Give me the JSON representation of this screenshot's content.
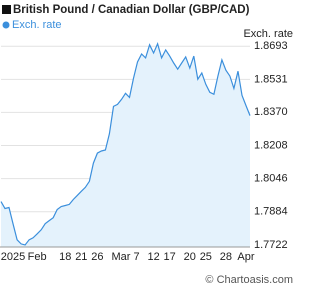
{
  "chart_data": {
    "type": "area",
    "title": "British Pound / Canadian Dollar (GBP/CAD)",
    "y_axis_label": "Exch. rate",
    "credit": "© Chartoasis.com",
    "categories": [
      null,
      null,
      null,
      "2025",
      null,
      null,
      null,
      null,
      null,
      "Feb",
      null,
      null,
      null,
      null,
      null,
      null,
      "18",
      null,
      null,
      null,
      "21",
      null,
      null,
      null,
      "26",
      null,
      null,
      null,
      null,
      null,
      null,
      "Mar 7",
      null,
      null,
      null,
      null,
      null,
      null,
      "12",
      null,
      null,
      null,
      "17",
      null,
      null,
      null,
      null,
      "20",
      null,
      null,
      null,
      "25",
      null,
      null,
      null,
      null,
      "28",
      null,
      null,
      null,
      null,
      "Apr",
      null
    ],
    "series": [
      {
        "name": "Exch. rate",
        "color": "#3b8fdc",
        "fill": "#e4f2fc",
        "values": [
          1.7934,
          1.79,
          1.7905,
          1.7826,
          1.7747,
          1.7727,
          1.7722,
          1.7747,
          1.7757,
          1.7776,
          1.7796,
          1.7826,
          1.7841,
          1.7855,
          1.7895,
          1.791,
          1.7915,
          1.792,
          1.7944,
          1.7964,
          1.7984,
          1.8003,
          1.8033,
          1.8122,
          1.8171,
          1.8181,
          1.8186,
          1.8265,
          1.8399,
          1.8409,
          1.8433,
          1.8463,
          1.8443,
          1.8537,
          1.8616,
          1.8655,
          1.8636,
          1.87,
          1.866,
          1.8705,
          1.8636,
          1.8675,
          1.8645,
          1.8611,
          1.8581,
          1.8611,
          1.8641,
          1.8586,
          1.8645,
          1.8532,
          1.8562,
          1.8507,
          1.8468,
          1.8458,
          1.8547,
          1.8626,
          1.8576,
          1.8547,
          1.8487,
          1.8571,
          1.8453,
          1.8403,
          1.8354
        ]
      }
    ],
    "ylim": [
      1.7712,
      1.8743
    ],
    "yticks": [
      1.7722,
      1.7884,
      1.8046,
      1.8208,
      {
        "value": 1.837,
        "label": "1.8370"
      },
      1.8531,
      1.8693
    ],
    "grid": true
  }
}
